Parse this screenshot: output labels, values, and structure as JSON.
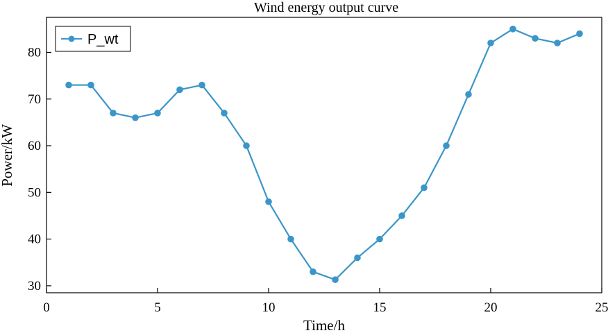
{
  "chart_data": {
    "type": "line",
    "title": "Wind energy output curve",
    "xlabel": "Time/h",
    "ylabel": "Power/kW",
    "xlim": [
      0,
      25
    ],
    "ylim": [
      28.5,
      87.5
    ],
    "xticks": [
      0,
      5,
      10,
      15,
      20,
      25
    ],
    "yticks": [
      30,
      40,
      50,
      60,
      70,
      80
    ],
    "grid": false,
    "legend_position": "top-left",
    "series": [
      {
        "name": "P_wt",
        "color": "#3a96c8",
        "marker": "circle",
        "x": [
          1,
          2,
          3,
          4,
          5,
          6,
          7,
          8,
          9,
          10,
          11,
          12,
          13,
          14,
          15,
          16,
          17,
          18,
          19,
          20,
          21,
          22,
          23,
          24
        ],
        "values": [
          73,
          73,
          67,
          66,
          67,
          72,
          73,
          67,
          60,
          48,
          40,
          33,
          31.3,
          36,
          40,
          45,
          51,
          60,
          71,
          82,
          85,
          83,
          82,
          84
        ]
      }
    ]
  }
}
